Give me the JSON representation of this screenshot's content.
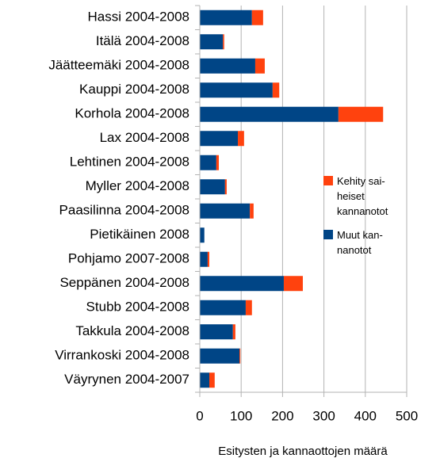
{
  "chart_data": {
    "type": "hbar_stacked",
    "categories": [
      "Hassi 2004-2008",
      "Itälä 2004-2008",
      "Jäätteemäki 2004-2008",
      "Kauppi 2004-2008",
      "Korhola 2004-2008",
      "Lax 2004-2008",
      "Lehtinen 2004-2008",
      "Myller 2004-2008",
      "Paasilinna 2004-2008",
      "Pietikäinen 2008",
      "Pohjamo 2007-2008",
      "Seppänen 2004-2008",
      "Stubb 2004-2008",
      "Takkula 2004-2008",
      "Virrankoski 2004-2008",
      "Väyrynen 2004-2007"
    ],
    "series": [
      {
        "name": "Muut kan-\nnanotot",
        "color": "#004586",
        "values": [
          126,
          56,
          134,
          176,
          335,
          92,
          40,
          61,
          121,
          11,
          19,
          203,
          111,
          80,
          96,
          23
        ]
      },
      {
        "name": "Kehity sai-\nheiset\nkannanotot",
        "color": "#ff420e",
        "values": [
          27,
          3,
          23,
          16,
          108,
          15,
          6,
          4,
          9,
          0,
          4,
          46,
          15,
          6,
          2,
          13
        ]
      }
    ],
    "xlabel": "Esitysten ja kannaottojen määrä",
    "xlim": [
      0,
      500
    ],
    "xticks": [
      0,
      100,
      200,
      300,
      400,
      500
    ],
    "grid": true
  }
}
